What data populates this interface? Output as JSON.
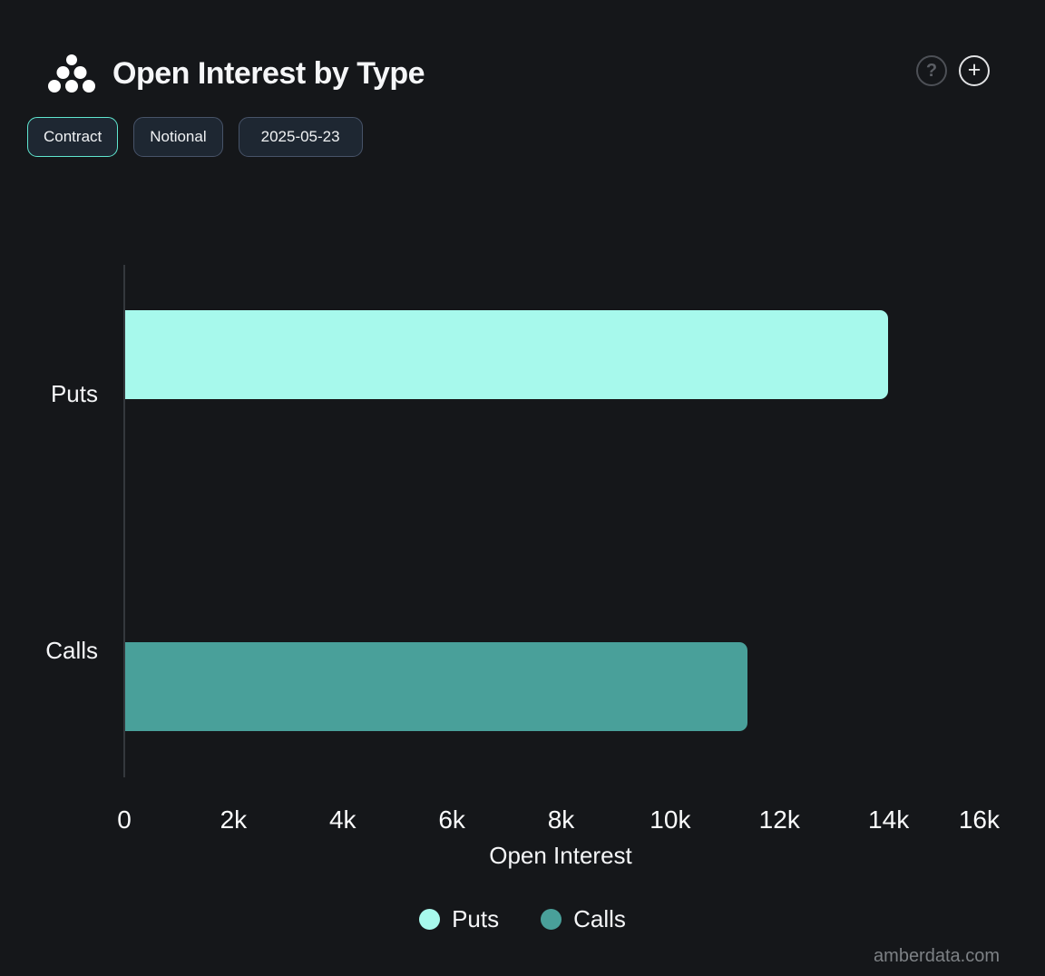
{
  "header": {
    "title": "Open Interest by Type",
    "help_label": "?",
    "add_label": "+"
  },
  "toolbar": {
    "buttons": [
      {
        "label": "Contract",
        "active": true
      },
      {
        "label": "Notional",
        "active": false
      },
      {
        "label": "2025-05-23",
        "active": false
      }
    ]
  },
  "chart_data": {
    "type": "bar",
    "orientation": "horizontal",
    "title": "Open Interest by Type",
    "xlabel": "Open Interest",
    "ylabel": "",
    "categories": [
      "Puts",
      "Calls"
    ],
    "series": [
      {
        "name": "Puts",
        "value": 13970,
        "color": "#A7F9EC"
      },
      {
        "name": "Calls",
        "value": 11400,
        "color": "#49A09A"
      }
    ],
    "xlim": [
      0,
      16000
    ],
    "x_tick_values": [
      0,
      2000,
      4000,
      6000,
      8000,
      10000,
      12000,
      14000,
      16000
    ],
    "x_tick_labels": [
      "0",
      "2k",
      "4k",
      "6k",
      "8k",
      "10k",
      "12k",
      "14k",
      "16k"
    ],
    "grid": false,
    "legend_position": "bottom"
  },
  "watermark": "amberdata.com"
}
